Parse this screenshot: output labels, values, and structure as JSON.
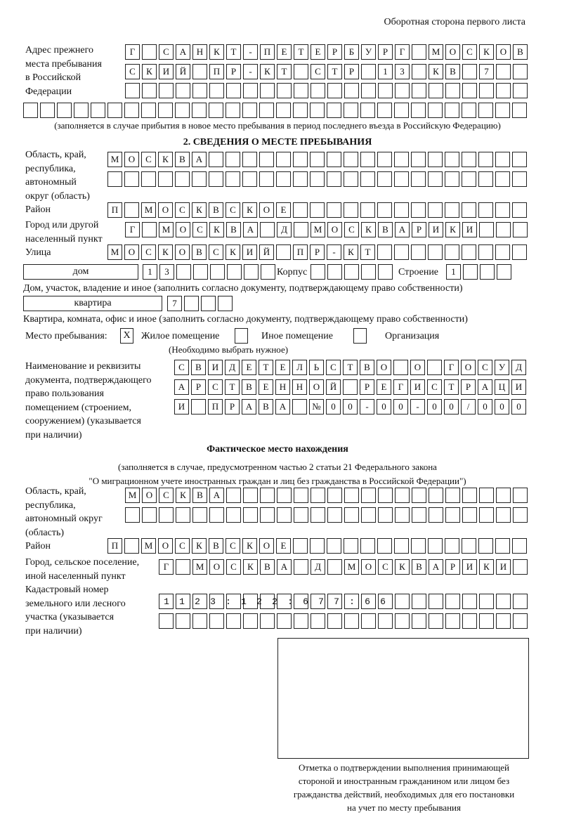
{
  "header": "Оборотная сторона первого листа",
  "prev_address": {
    "label": "Адрес прежнего\nместа пребывания\nв Российской\nФедерации",
    "rows": [
      "Г САНКТ-ПЕТЕРБУРГ МОСКОВ",
      "СКИЙ ПР-КТ СТР 13 КВ 7",
      "",
      ""
    ],
    "note": "(заполняется в случае прибытия в новое место пребывания в период последнего въезда в Российскую Федерацию)"
  },
  "section2": {
    "title": "2. СВЕДЕНИЯ О МЕСТЕ ПРЕБЫВАНИЯ",
    "region_label": "Область, край,\nреспублика,\nавтономный\nокруг (область)",
    "region": [
      "МОСКВА",
      ""
    ],
    "district_label": "Район",
    "district": "П МОСКВСКОЕ",
    "city_label": "Город или другой\nнаселенный пункт",
    "city": "Г МОСКВА Д МОСКВАРИКИ",
    "street_label": "Улица",
    "street": "МОСКОВСКИЙ ПР-КТ",
    "house_type": "дом",
    "house": "13",
    "korpus_label": "Корпус",
    "korpus": "",
    "building_label": "Строение",
    "building": "1",
    "house_note": "Дом, участок, владение и иное (заполнить согласно документу, подтверждающему право собственности)",
    "flat_type": "квартира",
    "flat": "7",
    "flat_note": "Квартира, комната, офис и иное (заполнить согласно документу, подтверждающему право собственности)",
    "stay_label": "Место пребывания:",
    "options": [
      {
        "label": "Жилое помещение",
        "checked": true,
        "mark": "X"
      },
      {
        "label": "Иное помещение",
        "checked": false
      },
      {
        "label": "Организация",
        "checked": false
      }
    ],
    "stay_note": "(Необходимо выбрать нужное)",
    "doc_label": "Наименование и реквизиты\nдокумента, подтверждающего\nправо пользования\nпомещением (строением,\nсооружением) (указывается\nпри наличии)",
    "doc": [
      "СВИДЕТЕЛЬСТВО О ГОСУД",
      "АРСТВЕННОЙ РЕГИСТРАЦИ",
      "И ПРАВА №00-00-00/000"
    ]
  },
  "actual": {
    "title": "Фактическое место нахождения",
    "note": "(заполняется в случае, предусмотренном частью 2 статьи 21 Федерального закона\n\"О миграционном учете иностранных граждан и лиц без гражданства в Российской Федерации\")",
    "region_label": "Область, край,\nреспублика,\nавтономный округ\n(область)",
    "region": [
      "МОСКВА",
      ""
    ],
    "district_label": "Район",
    "district": "П МОСКВСКОЕ",
    "city_label": "Город, сельское поселение,\nиной населенный пункт",
    "city": "Г МОСКВА Д МОСКВАРИКИ",
    "cadastre_label": "Кадастровый номер\nземельного или лесного\nучастка (указывается\nпри наличии)",
    "cadastre": [
      "1123:122:677:66",
      ""
    ]
  },
  "stamp_caption": "Отметка о подтверждении выполнения принимающей\nстороной и иностранным гражданином или лицом без\nгражданства действий, необходимых для его постановки\nна учет по месту пребывания"
}
